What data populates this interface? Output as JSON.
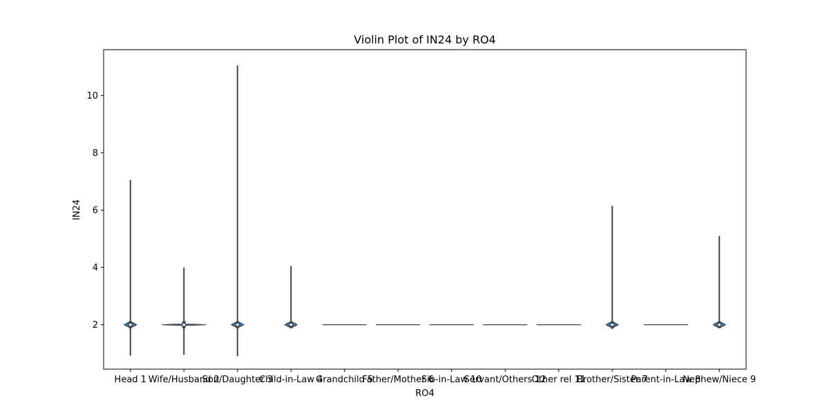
{
  "chart_data": {
    "type": "violin",
    "title": "Violin Plot of IN24 by RO4",
    "xlabel": "RO4",
    "ylabel": "IN24",
    "ylim": [
      0.45,
      11.6
    ],
    "yticks": [
      2,
      4,
      6,
      8,
      10
    ],
    "categories": [
      "Head 1",
      "Wife/Husband 2",
      "Son/Daughter 3",
      "Child-in-Law 4",
      "Grandchild 5",
      "Father/Mother 6",
      "Sib-in-Law 10",
      "Servant/Others 12",
      "Other rel 11",
      "Brother/Sister 7",
      "Parent-in-Law 8",
      "Nephew/Niece 9"
    ],
    "violins": [
      {
        "category": "Head 1",
        "min": 0.92,
        "max": 7.05,
        "median": 2.0
      },
      {
        "category": "Wife/Husband 2",
        "min": 0.95,
        "max": 4.0,
        "median": 2.0
      },
      {
        "category": "Son/Daughter 3",
        "min": 0.9,
        "max": 11.05,
        "median": 2.0
      },
      {
        "category": "Child-in-Law 4",
        "min": 2.0,
        "max": 4.05,
        "median": 2.0
      },
      {
        "category": "Grandchild 5",
        "min": 2.0,
        "max": 2.0,
        "median": 2.0
      },
      {
        "category": "Father/Mother 6",
        "min": 2.0,
        "max": 2.0,
        "median": 2.0
      },
      {
        "category": "Sib-in-Law 10",
        "min": 2.0,
        "max": 2.0,
        "median": 2.0
      },
      {
        "category": "Servant/Others 12",
        "min": 2.0,
        "max": 2.0,
        "median": 2.0
      },
      {
        "category": "Other rel 11",
        "min": 2.0,
        "max": 2.0,
        "median": 2.0
      },
      {
        "category": "Brother/Sister 7",
        "min": 1.85,
        "max": 6.15,
        "median": 2.0
      },
      {
        "category": "Parent-in-Law 8",
        "min": 2.0,
        "max": 2.0,
        "median": 2.0
      },
      {
        "category": "Nephew/Niece 9",
        "min": 1.9,
        "max": 5.1,
        "median": 2.0
      }
    ],
    "colors": {
      "fill": "#3a75a8",
      "edge": "#3f3f3f",
      "line": "#444444"
    },
    "grid": false,
    "legend": "none"
  }
}
